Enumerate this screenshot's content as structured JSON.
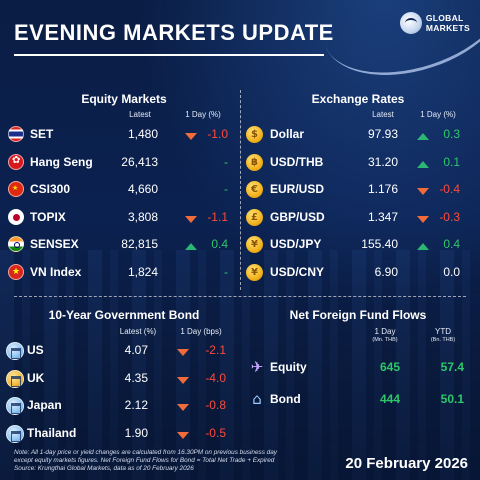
{
  "header": {
    "title": "EVENING MARKETS UPDATE"
  },
  "logo": {
    "line1": "GLOBAL",
    "line2": "MARKETS"
  },
  "equity": {
    "title": "Equity Markets",
    "col_latest": "Latest",
    "col_change": "1 Day (%)",
    "rows": [
      {
        "name": "SET",
        "latest": "1,480",
        "change": "-1.0",
        "dir": "down",
        "flag": "thailand-flag-icon"
      },
      {
        "name": "Hang Seng",
        "latest": "26,413",
        "change": "-",
        "dir": "none",
        "flag": "hong-kong-flag-icon"
      },
      {
        "name": "CSI300",
        "latest": "4,660",
        "change": "-",
        "dir": "none",
        "flag": "china-flag-icon"
      },
      {
        "name": "TOPIX",
        "latest": "3,808",
        "change": "-1.1",
        "dir": "down",
        "flag": "japan-flag-icon"
      },
      {
        "name": "SENSEX",
        "latest": "82,815",
        "change": "0.4",
        "dir": "up",
        "flag": "india-flag-icon"
      },
      {
        "name": "VN Index",
        "latest": "1,824",
        "change": "-",
        "dir": "none",
        "flag": "vietnam-flag-icon"
      }
    ]
  },
  "fx": {
    "title": "Exchange Rates",
    "col_latest": "Latest",
    "col_change": "1 Day (%)",
    "rows": [
      {
        "name": "Dollar",
        "latest": "97.93",
        "change": "0.3",
        "dir": "up",
        "symbol": "$"
      },
      {
        "name": "USD/THB",
        "latest": "31.20",
        "change": "0.1",
        "dir": "up",
        "symbol": "฿"
      },
      {
        "name": "EUR/USD",
        "latest": "1.176",
        "change": "-0.4",
        "dir": "down",
        "symbol": "€"
      },
      {
        "name": "GBP/USD",
        "latest": "1.347",
        "change": "-0.3",
        "dir": "down",
        "symbol": "£"
      },
      {
        "name": "USD/JPY",
        "latest": "155.40",
        "change": "0.4",
        "dir": "up",
        "symbol": "¥"
      },
      {
        "name": "USD/CNY",
        "latest": "6.90",
        "change": "0.0",
        "dir": "none",
        "symbol": "¥"
      }
    ]
  },
  "bond": {
    "title": "10-Year Government Bond",
    "col_latest": "Latest (%)",
    "col_change": "1 Day (bps)",
    "rows": [
      {
        "name": "US",
        "latest": "4.07",
        "change": "-2.1",
        "dir": "down"
      },
      {
        "name": "UK",
        "latest": "4.35",
        "change": "-4.0",
        "dir": "down"
      },
      {
        "name": "Japan",
        "latest": "2.12",
        "change": "-0.8",
        "dir": "down"
      },
      {
        "name": "Thailand",
        "latest": "1.90",
        "change": "-0.5",
        "dir": "down"
      }
    ]
  },
  "flows": {
    "title": "Net Foreign Fund Flows",
    "col_1day": "1 Day",
    "col_1day_unit": "(Mn. THB)",
    "col_ytd": "YTD",
    "col_ytd_unit": "(Bn. THB)",
    "rows": [
      {
        "name": "Equity",
        "day": "645",
        "ytd": "57.4"
      },
      {
        "name": "Bond",
        "day": "444",
        "ytd": "50.1"
      }
    ]
  },
  "colors": {
    "negative": "#ff4a3a",
    "positive": "#2ec76a",
    "background": "#0b2150"
  },
  "footer": {
    "note1": "Note: All 1-day price or yield changes are calculated from 16.30PM on previous business day",
    "note2": "except equity markets figures. Net Foreign Fund Flows for Bond = Total Net Trade + Expired",
    "note3": "Source: Krungthai Global Markets, data as of 20 February 2026",
    "date": "20 February 2026"
  }
}
